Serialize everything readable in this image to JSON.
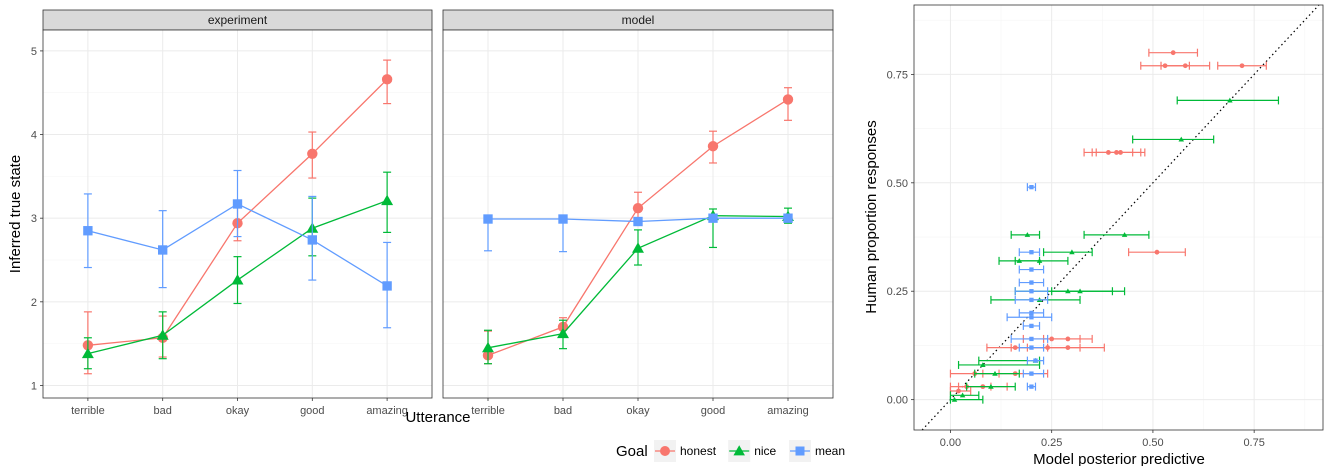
{
  "colors": {
    "honest": "#F8766D",
    "nice": "#00BA38",
    "mean": "#619CFF",
    "panel_bg": "#ffffff",
    "strip_bg": "#d9d9d9",
    "grid_major": "#ebebeb",
    "grid_minor": "#f5f5f5"
  },
  "legend": {
    "title": "Goal",
    "items": [
      {
        "key": "honest",
        "label": "honest",
        "shape": "circle"
      },
      {
        "key": "nice",
        "label": "nice",
        "shape": "triangle"
      },
      {
        "key": "mean",
        "label": "mean",
        "shape": "square"
      }
    ]
  },
  "chart_data": [
    {
      "type": "line",
      "facets": [
        "experiment",
        "model"
      ],
      "xlabel": "Utterance",
      "ylabel": "Inferred true state",
      "categories": [
        "terrible",
        "bad",
        "okay",
        "good",
        "amazing"
      ],
      "ylim": [
        0.85,
        5.25
      ],
      "yticks": [
        1,
        2,
        3,
        4,
        5
      ],
      "grid": true,
      "series": [
        {
          "name": "honest",
          "facet": "experiment",
          "values": [
            1.48,
            1.57,
            2.94,
            3.77,
            4.66
          ],
          "lower": [
            1.14,
            1.34,
            2.73,
            3.48,
            4.37
          ],
          "upper": [
            1.88,
            1.83,
            3.14,
            4.03,
            4.89
          ]
        },
        {
          "name": "nice",
          "facet": "experiment",
          "values": [
            1.38,
            1.6,
            2.26,
            2.88,
            3.21
          ],
          "lower": [
            1.2,
            1.32,
            1.98,
            2.55,
            2.83
          ],
          "upper": [
            1.57,
            1.88,
            2.54,
            3.24,
            3.55
          ]
        },
        {
          "name": "mean",
          "facet": "experiment",
          "values": [
            2.85,
            2.62,
            3.17,
            2.74,
            2.19
          ],
          "lower": [
            2.41,
            2.17,
            2.78,
            2.26,
            1.69
          ],
          "upper": [
            3.29,
            3.09,
            3.57,
            3.26,
            2.71
          ]
        },
        {
          "name": "honest",
          "facet": "model",
          "values": [
            1.36,
            1.7,
            3.12,
            3.86,
            4.42
          ],
          "lower": [
            1.26,
            1.6,
            2.94,
            3.66,
            4.17
          ],
          "upper": [
            1.65,
            1.81,
            3.31,
            4.04,
            4.56
          ]
        },
        {
          "name": "nice",
          "facet": "model",
          "values": [
            1.45,
            1.62,
            2.64,
            3.03,
            3.02
          ],
          "lower": [
            1.26,
            1.44,
            2.44,
            2.65,
            2.94
          ],
          "upper": [
            1.66,
            1.78,
            2.86,
            3.11,
            3.12
          ]
        },
        {
          "name": "mean",
          "facet": "model",
          "values": [
            2.99,
            2.99,
            2.96,
            3.0,
            3.0
          ],
          "lower": [
            2.61,
            2.6,
            2.94,
            2.98,
            2.99
          ],
          "upper": [
            3.0,
            3.0,
            3.0,
            3.01,
            3.01
          ]
        }
      ]
    },
    {
      "type": "scatter",
      "xlabel": "Model posterior predictive",
      "ylabel": "Human proportion responses",
      "xlim": [
        -0.09,
        0.92
      ],
      "ylim": [
        -0.07,
        0.91
      ],
      "xticks": [
        "0.00",
        "0.25",
        "0.50",
        "0.75"
      ],
      "yticks": [
        "0.00",
        "0.25",
        "0.50",
        "0.75"
      ],
      "reference_line": "y = x",
      "grid": true,
      "series": [
        {
          "name": "honest",
          "points": [
            {
              "x": 0.55,
              "y": 0.8,
              "xmin": 0.49,
              "xmax": 0.61
            },
            {
              "x": 0.53,
              "y": 0.77,
              "xmin": 0.47,
              "xmax": 0.59
            },
            {
              "x": 0.58,
              "y": 0.77,
              "xmin": 0.52,
              "xmax": 0.64
            },
            {
              "x": 0.72,
              "y": 0.77,
              "xmin": 0.66,
              "xmax": 0.78
            },
            {
              "x": 0.39,
              "y": 0.57,
              "xmin": 0.33,
              "xmax": 0.45
            },
            {
              "x": 0.41,
              "y": 0.57,
              "xmin": 0.35,
              "xmax": 0.47
            },
            {
              "x": 0.42,
              "y": 0.57,
              "xmin": 0.36,
              "xmax": 0.48
            },
            {
              "x": 0.51,
              "y": 0.34,
              "xmin": 0.44,
              "xmax": 0.58
            },
            {
              "x": 0.25,
              "y": 0.14,
              "xmin": 0.18,
              "xmax": 0.32
            },
            {
              "x": 0.29,
              "y": 0.14,
              "xmin": 0.23,
              "xmax": 0.35
            },
            {
              "x": 0.24,
              "y": 0.12,
              "xmin": 0.15,
              "xmax": 0.32
            },
            {
              "x": 0.29,
              "y": 0.12,
              "xmin": 0.19,
              "xmax": 0.38
            },
            {
              "x": 0.16,
              "y": 0.12,
              "xmin": 0.09,
              "xmax": 0.24
            },
            {
              "x": 0.16,
              "y": 0.06,
              "xmin": 0.08,
              "xmax": 0.24
            },
            {
              "x": 0.06,
              "y": 0.06,
              "xmin": 0.0,
              "xmax": 0.12
            },
            {
              "x": 0.04,
              "y": 0.03,
              "xmin": 0.0,
              "xmax": 0.1
            },
            {
              "x": 0.08,
              "y": 0.03,
              "xmin": 0.02,
              "xmax": 0.14
            },
            {
              "x": 0.02,
              "y": 0.02,
              "xmin": 0.0,
              "xmax": 0.05
            }
          ]
        },
        {
          "name": "nice",
          "points": [
            {
              "x": 0.69,
              "y": 0.69,
              "xmin": 0.56,
              "xmax": 0.81
            },
            {
              "x": 0.57,
              "y": 0.6,
              "xmin": 0.45,
              "xmax": 0.65
            },
            {
              "x": 0.43,
              "y": 0.38,
              "xmin": 0.33,
              "xmax": 0.49
            },
            {
              "x": 0.19,
              "y": 0.38,
              "xmin": 0.15,
              "xmax": 0.22
            },
            {
              "x": 0.3,
              "y": 0.34,
              "xmin": 0.23,
              "xmax": 0.35
            },
            {
              "x": 0.17,
              "y": 0.32,
              "xmin": 0.12,
              "xmax": 0.22
            },
            {
              "x": 0.22,
              "y": 0.32,
              "xmin": 0.16,
              "xmax": 0.29
            },
            {
              "x": 0.29,
              "y": 0.25,
              "xmin": 0.16,
              "xmax": 0.43
            },
            {
              "x": 0.32,
              "y": 0.25,
              "xmin": 0.25,
              "xmax": 0.4
            },
            {
              "x": 0.22,
              "y": 0.23,
              "xmin": 0.1,
              "xmax": 0.32
            },
            {
              "x": 0.21,
              "y": 0.09,
              "xmin": 0.07,
              "xmax": 0.22
            },
            {
              "x": 0.08,
              "y": 0.08,
              "xmin": 0.02,
              "xmax": 0.22
            },
            {
              "x": 0.11,
              "y": 0.06,
              "xmin": 0.06,
              "xmax": 0.17
            },
            {
              "x": 0.1,
              "y": 0.03,
              "xmin": 0.04,
              "xmax": 0.16
            },
            {
              "x": 0.03,
              "y": 0.01,
              "xmin": 0.0,
              "xmax": 0.07
            },
            {
              "x": 0.01,
              "y": 0.0,
              "xmin": 0.0,
              "xmax": 0.08
            }
          ]
        },
        {
          "name": "mean",
          "points": [
            {
              "x": 0.2,
              "y": 0.49,
              "xmin": 0.19,
              "xmax": 0.21
            },
            {
              "x": 0.2,
              "y": 0.34,
              "xmin": 0.17,
              "xmax": 0.22
            },
            {
              "x": 0.2,
              "y": 0.3,
              "xmin": 0.17,
              "xmax": 0.23
            },
            {
              "x": 0.2,
              "y": 0.27,
              "xmin": 0.17,
              "xmax": 0.23
            },
            {
              "x": 0.2,
              "y": 0.25,
              "xmin": 0.16,
              "xmax": 0.24
            },
            {
              "x": 0.2,
              "y": 0.23,
              "xmin": 0.16,
              "xmax": 0.24
            },
            {
              "x": 0.2,
              "y": 0.2,
              "xmin": 0.17,
              "xmax": 0.23
            },
            {
              "x": 0.2,
              "y": 0.19,
              "xmin": 0.14,
              "xmax": 0.25
            },
            {
              "x": 0.2,
              "y": 0.17,
              "xmin": 0.18,
              "xmax": 0.22
            },
            {
              "x": 0.2,
              "y": 0.14,
              "xmin": 0.15,
              "xmax": 0.24
            },
            {
              "x": 0.2,
              "y": 0.12,
              "xmin": 0.17,
              "xmax": 0.23
            },
            {
              "x": 0.21,
              "y": 0.09,
              "xmin": 0.19,
              "xmax": 0.23
            },
            {
              "x": 0.2,
              "y": 0.06,
              "xmin": 0.18,
              "xmax": 0.23
            },
            {
              "x": 0.2,
              "y": 0.03,
              "xmin": 0.19,
              "xmax": 0.21
            }
          ]
        }
      ]
    }
  ]
}
